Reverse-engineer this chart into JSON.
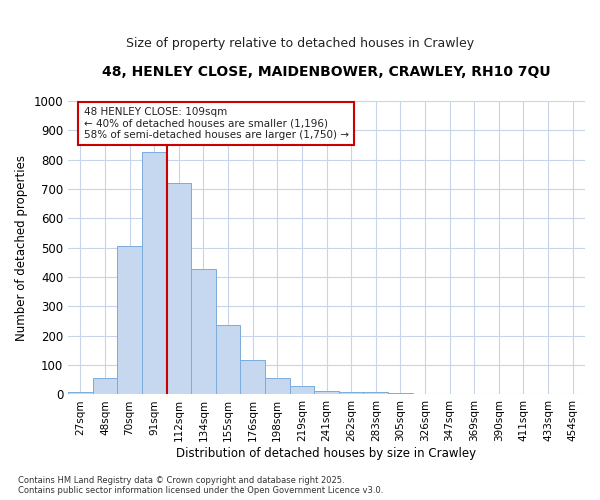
{
  "title": "48, HENLEY CLOSE, MAIDENBOWER, CRAWLEY, RH10 7QU",
  "subtitle": "Size of property relative to detached houses in Crawley",
  "xlabel": "Distribution of detached houses by size in Crawley",
  "ylabel": "Number of detached properties",
  "bins": [
    "27sqm",
    "48sqm",
    "70sqm",
    "91sqm",
    "112sqm",
    "134sqm",
    "155sqm",
    "176sqm",
    "198sqm",
    "219sqm",
    "241sqm",
    "262sqm",
    "283sqm",
    "305sqm",
    "326sqm",
    "347sqm",
    "369sqm",
    "390sqm",
    "411sqm",
    "433sqm",
    "454sqm"
  ],
  "values": [
    8,
    57,
    505,
    825,
    722,
    428,
    238,
    116,
    57,
    30,
    13,
    10,
    10,
    5,
    0,
    0,
    0,
    0,
    0,
    0,
    0
  ],
  "bar_color": "#c5d8f0",
  "bar_edge_color": "#7aacdc",
  "grid_color": "#c8d4e8",
  "vline_x": 4,
  "vline_color": "#cc0000",
  "annotation_box_text": "48 HENLEY CLOSE: 109sqm\n← 40% of detached houses are smaller (1,196)\n58% of semi-detached houses are larger (1,750) →",
  "annotation_box_color": "#cc0000",
  "annotation_box_bg": "#ffffff",
  "footnote": "Contains HM Land Registry data © Crown copyright and database right 2025.\nContains public sector information licensed under the Open Government Licence v3.0.",
  "ylim": [
    0,
    1000
  ],
  "background_color": "#ffffff",
  "title_fontsize": 10,
  "subtitle_fontsize": 9
}
